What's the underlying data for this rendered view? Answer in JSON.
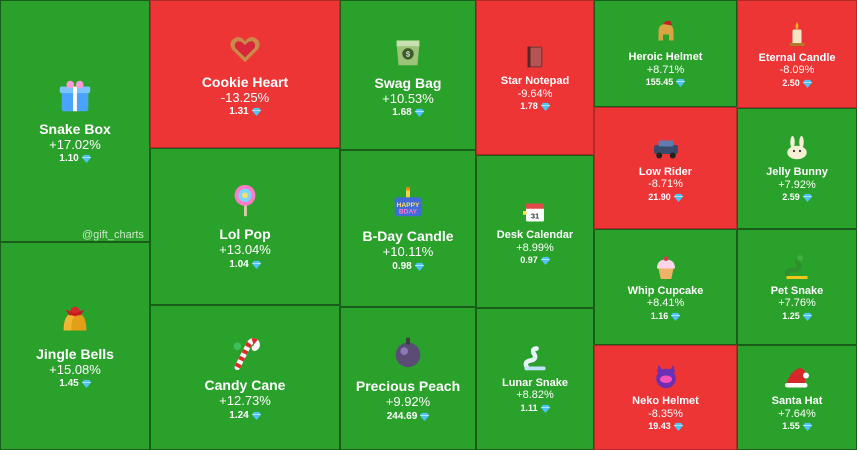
{
  "watermark": "@gift_charts",
  "currency_icon": "diamond-icon",
  "colors": {
    "up": "#2aa12a",
    "down": "#ee3535",
    "gem": "#4fc3f7"
  },
  "chart_data": {
    "type": "treemap",
    "items": [
      {
        "name": "Snake Box",
        "change": "+17.02%",
        "change_value": 17.02,
        "price": "1.10",
        "icon": "gift-box-icon"
      },
      {
        "name": "Jingle Bells",
        "change": "+15.08%",
        "change_value": 15.08,
        "price": "1.45",
        "icon": "bells-icon"
      },
      {
        "name": "Cookie Heart",
        "change": "-13.25%",
        "change_value": -13.25,
        "price": "1.31",
        "icon": "cookie-heart-icon"
      },
      {
        "name": "Lol Pop",
        "change": "+13.04%",
        "change_value": 13.04,
        "price": "1.04",
        "icon": "lollipop-icon"
      },
      {
        "name": "Candy Cane",
        "change": "+12.73%",
        "change_value": 12.73,
        "price": "1.24",
        "icon": "candy-cane-icon"
      },
      {
        "name": "Swag Bag",
        "change": "+10.53%",
        "change_value": 10.53,
        "price": "1.68",
        "icon": "bag-icon"
      },
      {
        "name": "B-Day Candle",
        "change": "+10.11%",
        "change_value": 10.11,
        "price": "0.98",
        "icon": "birthday-candle-icon"
      },
      {
        "name": "Precious Peach",
        "change": "+9.92%",
        "change_value": 9.92,
        "price": "244.69",
        "icon": "peach-icon"
      },
      {
        "name": "Star Notepad",
        "change": "-9.64%",
        "change_value": -9.64,
        "price": "1.78",
        "icon": "notepad-icon"
      },
      {
        "name": "Desk Calendar",
        "change": "+8.99%",
        "change_value": 8.99,
        "price": "0.97",
        "icon": "calendar-icon"
      },
      {
        "name": "Lunar Snake",
        "change": "+8.82%",
        "change_value": 8.82,
        "price": "1.11",
        "icon": "snake-icon"
      },
      {
        "name": "Heroic Helmet",
        "change": "+8.71%",
        "change_value": 8.71,
        "price": "155.45",
        "icon": "helmet-icon"
      },
      {
        "name": "Low Rider",
        "change": "-8.71%",
        "change_value": -8.71,
        "price": "21.90",
        "icon": "car-icon"
      },
      {
        "name": "Whip Cupcake",
        "change": "+8.41%",
        "change_value": 8.41,
        "price": "1.16",
        "icon": "cupcake-icon"
      },
      {
        "name": "Neko Helmet",
        "change": "-8.35%",
        "change_value": -8.35,
        "price": "19.43",
        "icon": "cat-helmet-icon"
      },
      {
        "name": "Eternal Candle",
        "change": "-8.09%",
        "change_value": -8.09,
        "price": "2.50",
        "icon": "candle-icon"
      },
      {
        "name": "Jelly Bunny",
        "change": "+7.92%",
        "change_value": 7.92,
        "price": "2.59",
        "icon": "bunny-icon"
      },
      {
        "name": "Pet Snake",
        "change": "+7.76%",
        "change_value": 7.76,
        "price": "1.25",
        "icon": "pet-snake-icon"
      },
      {
        "name": "Santa Hat",
        "change": "+7.64%",
        "change_value": 7.64,
        "price": "1.55",
        "icon": "santa-hat-icon"
      }
    ]
  }
}
